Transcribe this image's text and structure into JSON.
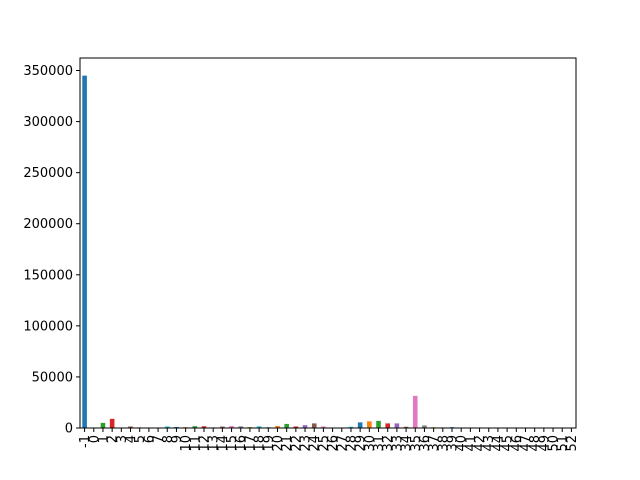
{
  "chart_data": {
    "type": "bar",
    "title": "",
    "xlabel": "",
    "ylabel": "",
    "categories": [
      "-1",
      "0",
      "1",
      "2",
      "3",
      "4",
      "5",
      "6",
      "7",
      "8",
      "9",
      "10",
      "11",
      "12",
      "13",
      "14",
      "15",
      "16",
      "17",
      "18",
      "19",
      "20",
      "21",
      "22",
      "23",
      "24",
      "25",
      "26",
      "27",
      "28",
      "29",
      "30",
      "31",
      "32",
      "33",
      "34",
      "35",
      "36",
      "37",
      "38",
      "39",
      "40",
      "41",
      "42",
      "43",
      "44",
      "45",
      "46",
      "47",
      "48",
      "49",
      "50",
      "51",
      "52"
    ],
    "values": [
      345000,
      400,
      5000,
      9000,
      200,
      1500,
      600,
      500,
      300,
      1500,
      1000,
      800,
      1800,
      1700,
      600,
      1400,
      1900,
      1600,
      1000,
      1600,
      700,
      2000,
      4000,
      1500,
      2800,
      4500,
      1500,
      400,
      300,
      1200,
      5500,
      6500,
      7000,
      4500,
      4500,
      1200,
      31500,
      2500,
      800,
      600,
      800,
      300,
      200,
      200,
      150,
      150,
      150,
      100,
      100,
      100,
      100,
      100,
      100,
      100
    ],
    "bar_colors": [
      "#1f77b4",
      "#ff7f0e",
      "#2ca02c",
      "#d62728",
      "#9467bd",
      "#8c564b",
      "#e377c2",
      "#7f7f7f",
      "#bcbd22",
      "#17becf"
    ],
    "yticks": [
      0,
      50000,
      100000,
      150000,
      200000,
      250000,
      300000,
      350000
    ],
    "ylim": [
      0,
      362250
    ],
    "grid": false,
    "legend": "none"
  }
}
